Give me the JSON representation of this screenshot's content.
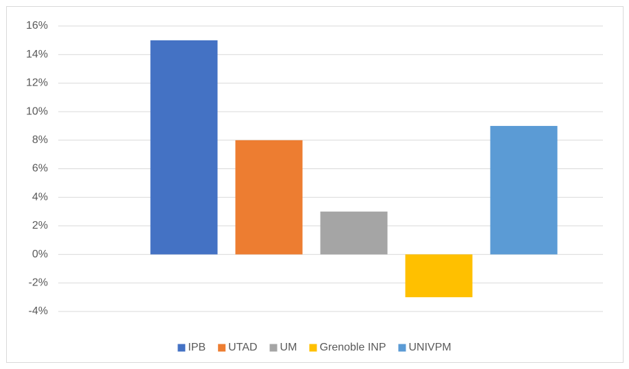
{
  "chart_data": {
    "type": "bar",
    "categories": [
      null
    ],
    "series": [
      {
        "name": "IPB",
        "color": "#4472c4",
        "values": [
          15
        ]
      },
      {
        "name": "UTAD",
        "color": "#ed7d31",
        "values": [
          8
        ]
      },
      {
        "name": "UM",
        "color": "#a5a5a5",
        "values": [
          3
        ]
      },
      {
        "name": "Grenoble INP",
        "color": "#ffc000",
        "values": [
          -3
        ]
      },
      {
        "name": "UNIVPM",
        "color": "#5b9bd5",
        "values": [
          9
        ]
      }
    ],
    "ylim": [
      -4,
      16
    ],
    "yticks": [
      {
        "value": -4,
        "label": "-4%"
      },
      {
        "value": -2,
        "label": "-2%"
      },
      {
        "value": 0,
        "label": "0%"
      },
      {
        "value": 2,
        "label": "2%"
      },
      {
        "value": 4,
        "label": "4%"
      },
      {
        "value": 6,
        "label": "6%"
      },
      {
        "value": 8,
        "label": "8%"
      },
      {
        "value": 10,
        "label": "10%"
      },
      {
        "value": 12,
        "label": "12%"
      },
      {
        "value": 14,
        "label": "14%"
      },
      {
        "value": 16,
        "label": "16%"
      }
    ],
    "grid": true,
    "legend": "bottom"
  }
}
